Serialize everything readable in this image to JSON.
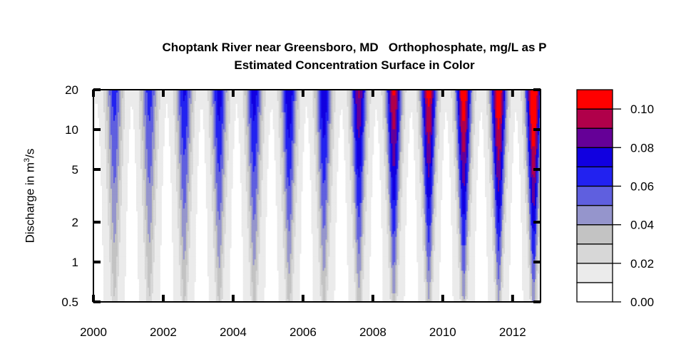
{
  "chart_data": {
    "type": "heatmap",
    "subtype": "filled-contour",
    "title": "Choptank River near Greensboro, MD   Orthophosphate, mg/L as P",
    "subtitle": "Estimated Concentration Surface in Color",
    "xlabel": "",
    "ylabel": "Discharge in m",
    "ylabel_sup": "3",
    "ylabel_suffix": "/s",
    "xlim": [
      2000,
      2012.8
    ],
    "ylim": [
      0.5,
      20
    ],
    "y_scale": "log",
    "x_ticks": [
      2000,
      2002,
      2004,
      2006,
      2008,
      2010,
      2012
    ],
    "x_tick_labels": [
      "2000",
      "2002",
      "2004",
      "2006",
      "2008",
      "2010",
      "2012"
    ],
    "y_ticks": [
      0.5,
      1,
      2,
      5,
      10,
      20
    ],
    "y_tick_labels": [
      "0.5",
      "1",
      "2",
      "5",
      "10",
      "20"
    ],
    "grid": false,
    "colorbar": {
      "placement": "right",
      "levels": [
        0.0,
        0.01,
        0.02,
        0.03,
        0.04,
        0.05,
        0.06,
        0.07,
        0.08,
        0.09,
        0.1,
        0.11
      ],
      "colors": [
        "#ffffff",
        "#ebebeb",
        "#d7d7d7",
        "#c3c3c3",
        "#9595cc",
        "#5f5fdf",
        "#2222f0",
        "#1100e0",
        "#650097",
        "#b0004a",
        "#ff0000"
      ],
      "tick_values": [
        0.0,
        0.02,
        0.04,
        0.06,
        0.08,
        0.1
      ],
      "tick_labels": [
        "0.00",
        "0.02",
        "0.04",
        "0.06",
        "0.08",
        "0.10"
      ]
    },
    "seasonal_peaks": [
      {
        "time": 2000.6,
        "max_concentration": 0.055
      },
      {
        "time": 2001.6,
        "max_concentration": 0.055
      },
      {
        "time": 2002.6,
        "max_concentration": 0.062
      },
      {
        "time": 2003.6,
        "max_concentration": 0.066
      },
      {
        "time": 2004.6,
        "max_concentration": 0.066
      },
      {
        "time": 2005.6,
        "max_concentration": 0.07
      },
      {
        "time": 2006.6,
        "max_concentration": 0.07
      },
      {
        "time": 2007.6,
        "max_concentration": 0.082
      },
      {
        "time": 2008.6,
        "max_concentration": 0.092
      },
      {
        "time": 2009.6,
        "max_concentration": 0.095
      },
      {
        "time": 2010.6,
        "max_concentration": 0.1
      },
      {
        "time": 2011.6,
        "max_concentration": 0.102
      },
      {
        "time": 2012.6,
        "max_concentration": 0.11
      }
    ],
    "low_flow_baseline_concentration": 0.012
  }
}
